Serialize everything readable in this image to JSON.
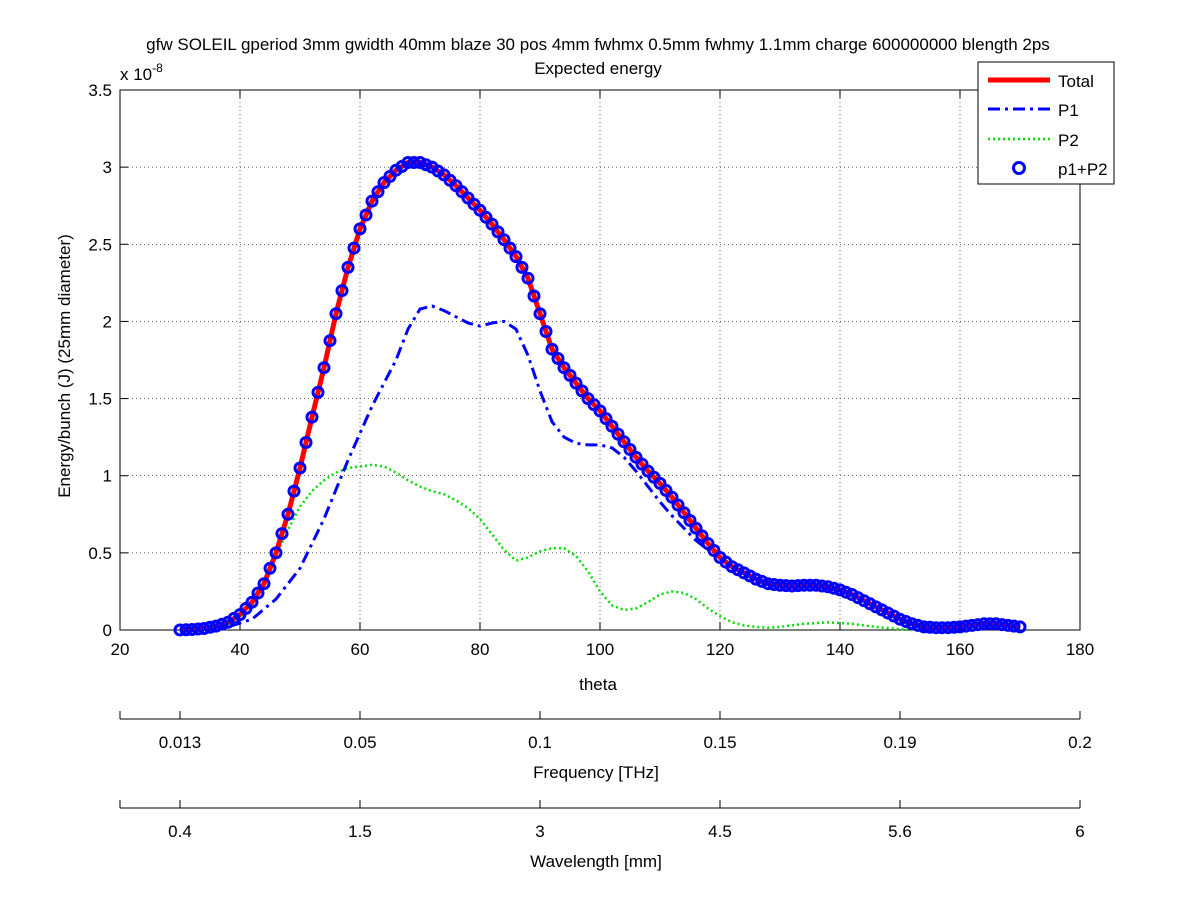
{
  "chart_data": {
    "type": "line",
    "title_line1": "gfw SOLEIL gperiod 3mm gwidth 40mm blaze 30 pos 4mm fwhmx 0.5mm fwhmy 1.1mm charge 600000000 blength 2ps",
    "title_line2": "Expected energy",
    "xlabel": "theta",
    "ylabel": "Energy/bunch (J) (25mm diameter)",
    "y_exponent_label": "x 10",
    "y_exponent_power": "-8",
    "xlim": [
      20,
      180
    ],
    "ylim": [
      0,
      3.5
    ],
    "x_ticks": [
      "20",
      "40",
      "60",
      "80",
      "100",
      "120",
      "140",
      "160",
      "180"
    ],
    "y_ticks": [
      "0",
      "0.5",
      "1",
      "1.5",
      "2",
      "2.5",
      "3",
      "3.5"
    ],
    "grid": true,
    "legend_position": "top-right",
    "secondary_axes": [
      {
        "label": "Frequency [THz]",
        "tick_positions_theta": [
          30,
          60,
          90,
          120,
          150,
          180
        ],
        "tick_labels": [
          "0.013",
          "0.05",
          "0.1",
          "0.15",
          "0.19",
          "0.2"
        ]
      },
      {
        "label": "Wavelength [mm]",
        "tick_positions_theta": [
          30,
          60,
          90,
          120,
          150,
          180
        ],
        "tick_labels": [
          "0.4",
          "1.5",
          "3",
          "4.5",
          "5.6",
          "6"
        ]
      }
    ],
    "series": [
      {
        "name": "Total",
        "color": "#ff0000",
        "style": "solid",
        "points": [
          [
            30,
            0.0
          ],
          [
            32,
            0.003
          ],
          [
            34,
            0.01
          ],
          [
            36,
            0.025
          ],
          [
            38,
            0.05
          ],
          [
            40,
            0.1
          ],
          [
            42,
            0.18
          ],
          [
            44,
            0.3
          ],
          [
            46,
            0.5
          ],
          [
            48,
            0.75
          ],
          [
            50,
            1.05
          ],
          [
            52,
            1.38
          ],
          [
            54,
            1.7
          ],
          [
            56,
            2.05
          ],
          [
            58,
            2.35
          ],
          [
            60,
            2.6
          ],
          [
            62,
            2.78
          ],
          [
            64,
            2.9
          ],
          [
            66,
            2.98
          ],
          [
            68,
            3.03
          ],
          [
            70,
            3.03
          ],
          [
            72,
            3.0
          ],
          [
            74,
            2.95
          ],
          [
            76,
            2.88
          ],
          [
            78,
            2.8
          ],
          [
            80,
            2.72
          ],
          [
            82,
            2.63
          ],
          [
            84,
            2.53
          ],
          [
            86,
            2.42
          ],
          [
            88,
            2.28
          ],
          [
            90,
            2.05
          ],
          [
            92,
            1.82
          ],
          [
            94,
            1.7
          ],
          [
            96,
            1.6
          ],
          [
            98,
            1.5
          ],
          [
            100,
            1.42
          ],
          [
            102,
            1.32
          ],
          [
            104,
            1.22
          ],
          [
            106,
            1.12
          ],
          [
            108,
            1.03
          ],
          [
            110,
            0.95
          ],
          [
            112,
            0.86
          ],
          [
            114,
            0.76
          ],
          [
            116,
            0.66
          ],
          [
            118,
            0.56
          ],
          [
            120,
            0.47
          ],
          [
            122,
            0.41
          ],
          [
            124,
            0.37
          ],
          [
            126,
            0.33
          ],
          [
            128,
            0.3
          ],
          [
            130,
            0.29
          ],
          [
            132,
            0.285
          ],
          [
            134,
            0.29
          ],
          [
            136,
            0.29
          ],
          [
            138,
            0.28
          ],
          [
            140,
            0.26
          ],
          [
            142,
            0.23
          ],
          [
            144,
            0.19
          ],
          [
            146,
            0.15
          ],
          [
            148,
            0.11
          ],
          [
            150,
            0.07
          ],
          [
            152,
            0.04
          ],
          [
            154,
            0.02
          ],
          [
            156,
            0.015
          ],
          [
            158,
            0.015
          ],
          [
            160,
            0.02
          ],
          [
            162,
            0.03
          ],
          [
            164,
            0.04
          ],
          [
            166,
            0.04
          ],
          [
            168,
            0.03
          ],
          [
            170,
            0.02
          ]
        ]
      },
      {
        "name": "P1",
        "color": "#0000ff",
        "style": "dashdot",
        "points": [
          [
            30,
            0.0
          ],
          [
            34,
            0.005
          ],
          [
            38,
            0.02
          ],
          [
            42,
            0.07
          ],
          [
            46,
            0.2
          ],
          [
            50,
            0.4
          ],
          [
            54,
            0.72
          ],
          [
            58,
            1.1
          ],
          [
            62,
            1.45
          ],
          [
            66,
            1.75
          ],
          [
            68,
            1.95
          ],
          [
            70,
            2.08
          ],
          [
            72,
            2.1
          ],
          [
            74,
            2.07
          ],
          [
            76,
            2.03
          ],
          [
            78,
            1.99
          ],
          [
            80,
            1.97
          ],
          [
            82,
            1.99
          ],
          [
            84,
            2.0
          ],
          [
            86,
            1.95
          ],
          [
            88,
            1.78
          ],
          [
            90,
            1.55
          ],
          [
            92,
            1.35
          ],
          [
            94,
            1.25
          ],
          [
            96,
            1.21
          ],
          [
            98,
            1.2
          ],
          [
            100,
            1.2
          ],
          [
            102,
            1.18
          ],
          [
            104,
            1.12
          ],
          [
            106,
            1.03
          ],
          [
            108,
            0.93
          ],
          [
            110,
            0.83
          ],
          [
            112,
            0.74
          ],
          [
            114,
            0.66
          ],
          [
            116,
            0.58
          ],
          [
            118,
            0.52
          ],
          [
            120,
            0.47
          ],
          [
            122,
            0.42
          ]
        ]
      },
      {
        "name": "P2",
        "color": "#00dd00",
        "style": "dotted",
        "points": [
          [
            30,
            0.0
          ],
          [
            34,
            0.005
          ],
          [
            38,
            0.03
          ],
          [
            40,
            0.08
          ],
          [
            42,
            0.15
          ],
          [
            44,
            0.3
          ],
          [
            46,
            0.48
          ],
          [
            48,
            0.65
          ],
          [
            50,
            0.8
          ],
          [
            52,
            0.9
          ],
          [
            54,
            0.97
          ],
          [
            56,
            1.02
          ],
          [
            58,
            1.05
          ],
          [
            60,
            1.06
          ],
          [
            62,
            1.07
          ],
          [
            64,
            1.06
          ],
          [
            66,
            1.02
          ],
          [
            68,
            0.97
          ],
          [
            70,
            0.93
          ],
          [
            72,
            0.9
          ],
          [
            74,
            0.88
          ],
          [
            76,
            0.84
          ],
          [
            78,
            0.79
          ],
          [
            80,
            0.72
          ],
          [
            82,
            0.62
          ],
          [
            84,
            0.52
          ],
          [
            86,
            0.45
          ],
          [
            88,
            0.47
          ],
          [
            90,
            0.51
          ],
          [
            92,
            0.53
          ],
          [
            94,
            0.53
          ],
          [
            96,
            0.48
          ],
          [
            98,
            0.38
          ],
          [
            100,
            0.25
          ],
          [
            102,
            0.16
          ],
          [
            104,
            0.13
          ],
          [
            106,
            0.14
          ],
          [
            108,
            0.18
          ],
          [
            110,
            0.23
          ],
          [
            112,
            0.25
          ],
          [
            114,
            0.24
          ],
          [
            116,
            0.2
          ],
          [
            118,
            0.14
          ],
          [
            120,
            0.09
          ],
          [
            122,
            0.05
          ],
          [
            124,
            0.03
          ],
          [
            126,
            0.02
          ],
          [
            128,
            0.015
          ],
          [
            130,
            0.02
          ],
          [
            132,
            0.03
          ],
          [
            134,
            0.04
          ],
          [
            136,
            0.045
          ],
          [
            138,
            0.05
          ],
          [
            140,
            0.045
          ],
          [
            142,
            0.04
          ],
          [
            144,
            0.03
          ],
          [
            146,
            0.02
          ],
          [
            148,
            0.012
          ],
          [
            150,
            0.005
          ],
          [
            152,
            0.0
          ]
        ]
      },
      {
        "name": "p1+P2",
        "color": "#0000ff",
        "style": "markers"
      }
    ]
  }
}
